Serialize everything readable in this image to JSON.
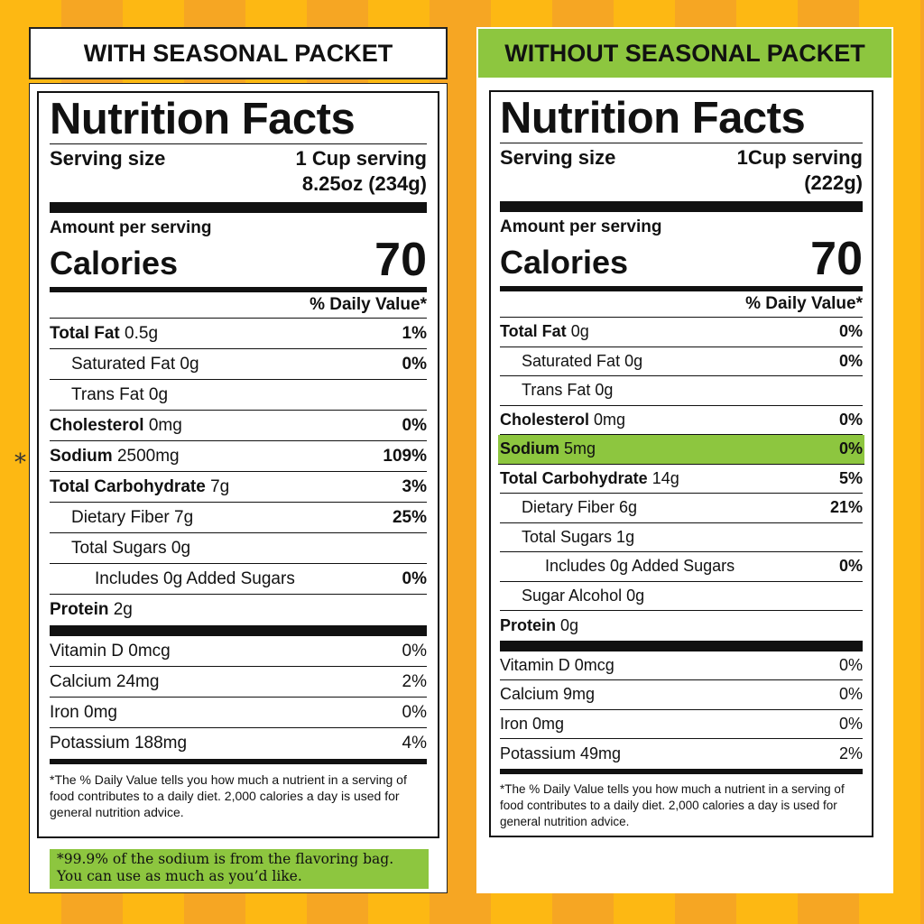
{
  "left": {
    "header": "WITH SEASONAL PACKET",
    "title": "Nutrition Facts",
    "serving_label": "Serving size",
    "serving_line1": "1 Cup serving",
    "serving_line2": "8.25oz (234g)",
    "amount_label": "Amount per serving",
    "calories_label": "Calories",
    "calories_value": "70",
    "dv_header": "% Daily Value*",
    "rows": [
      {
        "name": "Total Fat",
        "amount": "0.5g",
        "pct": "1%"
      },
      {
        "name": "Saturated Fat 0g",
        "pct": "0%"
      },
      {
        "name": "Trans Fat 0g"
      },
      {
        "name": "Cholesterol",
        "amount": "0mg",
        "pct": "0%"
      },
      {
        "name": "Sodium",
        "amount": "2500mg",
        "pct": "109%"
      },
      {
        "name": "Total Carbohydrate",
        "amount": "7g",
        "pct": "3%"
      },
      {
        "name": "Dietary Fiber 7g",
        "pct": "25%"
      },
      {
        "name": "Total Sugars 0g"
      },
      {
        "name": "Includes 0g Added Sugars",
        "pct": "0%"
      },
      {
        "name": "Protein",
        "amount": "2g"
      }
    ],
    "vitamins": [
      {
        "name": "Vitamin D 0mcg",
        "pct": "0%"
      },
      {
        "name": "Calcium 24mg",
        "pct": "2%"
      },
      {
        "name": "Iron 0mg",
        "pct": "0%"
      },
      {
        "name": "Potassium 188mg",
        "pct": "4%"
      }
    ],
    "footnote": "*The % Daily Value tells you how much a nutrient in a serving of food contributes to a daily diet. 2,000 calories a day is used for general nutrition advice.",
    "star": "*",
    "note_line1": "*99.9% of the sodium is from the flavoring bag.",
    "note_line2": "You can use as much as you’d like."
  },
  "right": {
    "header": "WITHOUT SEASONAL PACKET",
    "title": "Nutrition Facts",
    "serving_label": "Serving size",
    "serving_line1": "1Cup serving",
    "serving_line2": "(222g)",
    "amount_label": "Amount per serving",
    "calories_label": "Calories",
    "calories_value": "70",
    "dv_header": "% Daily Value*",
    "rows": [
      {
        "name": "Total Fat",
        "amount": "0g",
        "pct": "0%"
      },
      {
        "name": "Saturated Fat 0g",
        "pct": "0%"
      },
      {
        "name": "Trans Fat 0g"
      },
      {
        "name": "Cholesterol",
        "amount": "0mg",
        "pct": "0%"
      },
      {
        "name": "Sodium",
        "amount": "5mg",
        "pct": "0%"
      },
      {
        "name": "Total Carbohydrate",
        "amount": "14g",
        "pct": "5%"
      },
      {
        "name": "Dietary Fiber 6g",
        "pct": "21%"
      },
      {
        "name": "Total Sugars 1g"
      },
      {
        "name": "Includes 0g Added Sugars",
        "pct": "0%"
      },
      {
        "name": "Sugar Alcohol 0g"
      },
      {
        "name": "Protein",
        "amount": "0g"
      }
    ],
    "vitamins": [
      {
        "name": "Vitamin D 0mcg",
        "pct": "0%"
      },
      {
        "name": "Calcium 9mg",
        "pct": "0%"
      },
      {
        "name": "Iron 0mg",
        "pct": "0%"
      },
      {
        "name": "Potassium 49mg",
        "pct": "2%"
      }
    ],
    "footnote": "*The % Daily Value tells you how much a nutrient in a serving of food contributes to a daily diet. 2,000 calories a day is used for general nutrition advice."
  },
  "colors": {
    "highlight": "#8DC63F",
    "stripe_a": "#FDB813",
    "stripe_b": "#F6A623"
  }
}
